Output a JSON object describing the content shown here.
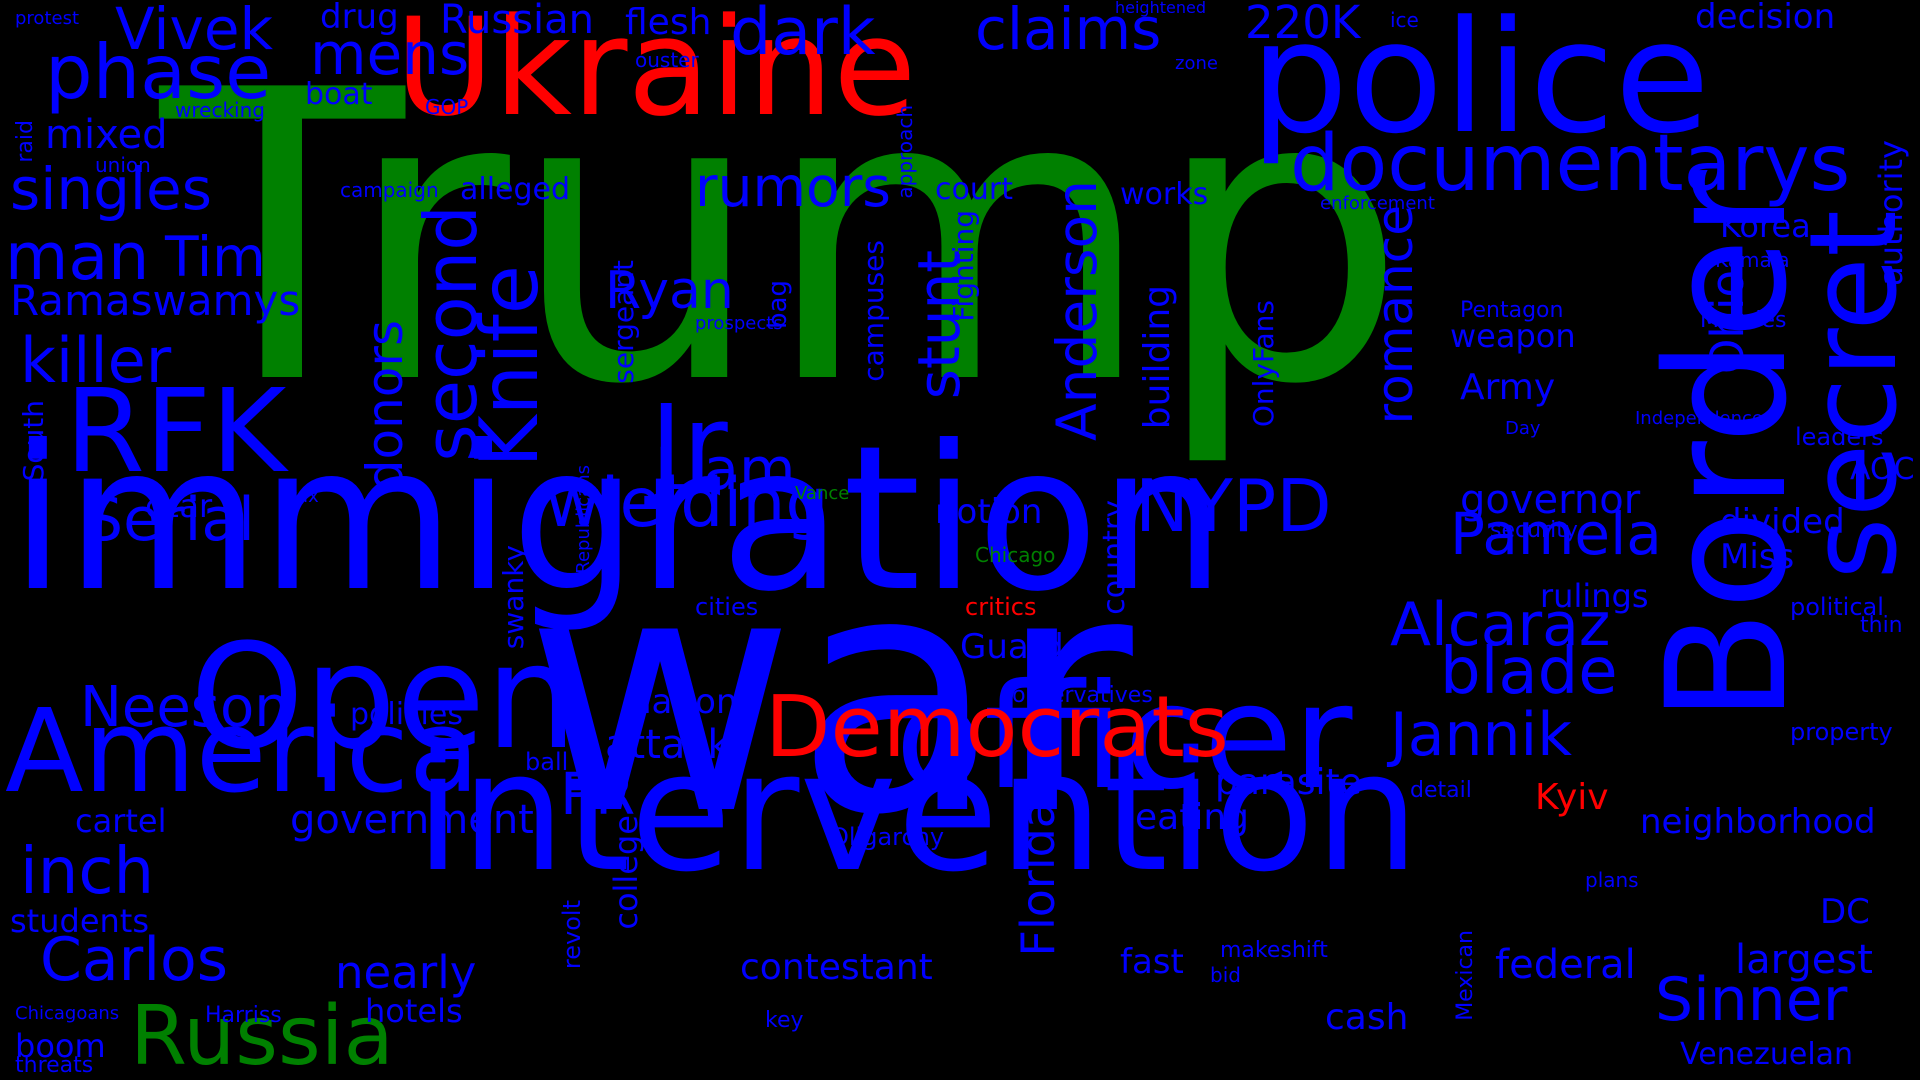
{
  "colors": {
    "background": "#000000",
    "blue": "#0000ff",
    "red": "#ff0000",
    "green": "#008000"
  },
  "words": [
    {
      "text": "Trump",
      "color": "green"
    },
    {
      "text": "war",
      "color": "blue"
    },
    {
      "text": "immigration",
      "color": "blue"
    },
    {
      "text": "intervention",
      "color": "blue"
    },
    {
      "text": "Ukraine",
      "color": "red"
    },
    {
      "text": "police",
      "color": "blue"
    },
    {
      "text": "officer",
      "color": "blue"
    },
    {
      "text": "Open",
      "color": "blue"
    },
    {
      "text": "Border",
      "color": "blue"
    },
    {
      "text": "secret",
      "color": "blue"
    },
    {
      "text": "America",
      "color": "blue"
    },
    {
      "text": "RFK",
      "color": "blue"
    },
    {
      "text": "Democrats",
      "color": "red"
    },
    {
      "text": "documentarys",
      "color": "blue"
    },
    {
      "text": "Russia",
      "color": "green"
    },
    {
      "text": "Jr",
      "color": "blue"
    },
    {
      "text": "Knife",
      "color": "blue"
    },
    {
      "text": "second",
      "color": "blue"
    },
    {
      "text": "Serial",
      "color": "blue"
    },
    {
      "text": "wielding",
      "color": "blue"
    },
    {
      "text": "NYPD",
      "color": "blue"
    },
    {
      "text": "Alcaraz",
      "color": "blue"
    },
    {
      "text": "Carlos",
      "color": "blue"
    },
    {
      "text": "Sinner",
      "color": "blue"
    },
    {
      "text": "Jannik",
      "color": "blue"
    },
    {
      "text": "blade",
      "color": "blue"
    },
    {
      "text": "Neeson",
      "color": "blue"
    },
    {
      "text": "Pamela",
      "color": "blue"
    },
    {
      "text": "Anderson",
      "color": "blue"
    },
    {
      "text": "phase",
      "color": "blue"
    },
    {
      "text": "dark",
      "color": "blue"
    },
    {
      "text": "claims",
      "color": "blue"
    },
    {
      "text": "mens",
      "color": "blue"
    },
    {
      "text": "Vivek",
      "color": "blue"
    },
    {
      "text": "singles",
      "color": "blue"
    },
    {
      "text": "man",
      "color": "blue"
    },
    {
      "text": "killer",
      "color": "blue"
    },
    {
      "text": "Tim",
      "color": "blue"
    },
    {
      "text": "rumors",
      "color": "blue"
    },
    {
      "text": "Ryan",
      "color": "blue"
    },
    {
      "text": "Liam",
      "color": "blue"
    },
    {
      "text": "stunt",
      "color": "blue"
    },
    {
      "text": "donors",
      "color": "blue"
    },
    {
      "text": "romance",
      "color": "blue"
    },
    {
      "text": "inch",
      "color": "blue"
    },
    {
      "text": "PR",
      "color": "blue"
    },
    {
      "text": "220K",
      "color": "blue"
    },
    {
      "text": "Ohio",
      "color": "blue"
    },
    {
      "text": "Ramaswamys",
      "color": "blue"
    },
    {
      "text": "mixed",
      "color": "blue"
    },
    {
      "text": "government",
      "color": "blue"
    },
    {
      "text": "nearly",
      "color": "blue"
    },
    {
      "text": "federal",
      "color": "blue"
    },
    {
      "text": "neighborhood",
      "color": "blue"
    },
    {
      "text": "largest",
      "color": "blue"
    },
    {
      "text": "Florida",
      "color": "blue"
    },
    {
      "text": "contestant",
      "color": "blue"
    },
    {
      "text": "attack",
      "color": "blue"
    },
    {
      "text": "governor",
      "color": "blue"
    },
    {
      "text": "nation",
      "color": "blue"
    },
    {
      "text": "authority",
      "color": "blue"
    },
    {
      "text": "decision",
      "color": "blue"
    },
    {
      "text": "Russian",
      "color": "blue"
    },
    {
      "text": "drug",
      "color": "blue"
    },
    {
      "text": "flesh",
      "color": "blue"
    },
    {
      "text": "building",
      "color": "blue"
    },
    {
      "text": "Korea",
      "color": "blue"
    },
    {
      "text": "Army",
      "color": "blue"
    },
    {
      "text": "weapon",
      "color": "blue"
    },
    {
      "text": "eating",
      "color": "blue"
    },
    {
      "text": "parasite",
      "color": "blue"
    },
    {
      "text": "hotels",
      "color": "blue"
    },
    {
      "text": "cash",
      "color": "blue"
    },
    {
      "text": "fast",
      "color": "blue"
    },
    {
      "text": "Guard",
      "color": "blue"
    },
    {
      "text": "notion",
      "color": "blue"
    },
    {
      "text": "rulings",
      "color": "blue"
    },
    {
      "text": "divided",
      "color": "blue"
    },
    {
      "text": "Miss",
      "color": "blue"
    },
    {
      "text": "DC",
      "color": "blue"
    },
    {
      "text": "AOC",
      "color": "blue"
    },
    {
      "text": "boom",
      "color": "blue"
    },
    {
      "text": "students",
      "color": "blue"
    },
    {
      "text": "cartel",
      "color": "blue"
    },
    {
      "text": "policies",
      "color": "blue"
    },
    {
      "text": "college",
      "color": "blue"
    },
    {
      "text": "czar",
      "color": "blue"
    },
    {
      "text": "alleged",
      "color": "blue"
    },
    {
      "text": "court",
      "color": "blue"
    },
    {
      "text": "works",
      "color": "blue"
    },
    {
      "text": "boat",
      "color": "blue"
    },
    {
      "text": "country",
      "color": "blue"
    },
    {
      "text": "OnlyFans",
      "color": "blue"
    },
    {
      "text": "Fighting",
      "color": "blue"
    },
    {
      "text": "campuses",
      "color": "blue"
    },
    {
      "text": "sergeant",
      "color": "blue"
    },
    {
      "text": "swanky",
      "color": "blue"
    },
    {
      "text": "South",
      "color": "blue"
    },
    {
      "text": "Kyiv",
      "color": "red"
    },
    {
      "text": "critics",
      "color": "red"
    },
    {
      "text": "Chicago",
      "color": "green"
    },
    {
      "text": "Vance",
      "color": "green"
    },
    {
      "text": "conservatives",
      "color": "blue"
    },
    {
      "text": "cities",
      "color": "blue"
    },
    {
      "text": "Oligarchy",
      "color": "blue"
    },
    {
      "text": "makeshift",
      "color": "blue"
    },
    {
      "text": "bid",
      "color": "blue"
    },
    {
      "text": "key",
      "color": "blue"
    },
    {
      "text": "Harriss",
      "color": "blue"
    },
    {
      "text": "Chicagoans",
      "color": "blue"
    },
    {
      "text": "threats",
      "color": "blue"
    },
    {
      "text": "revolt",
      "color": "blue"
    },
    {
      "text": "ball",
      "color": "blue"
    },
    {
      "text": "detail",
      "color": "blue"
    },
    {
      "text": "plans",
      "color": "blue"
    },
    {
      "text": "Mexican",
      "color": "blue"
    },
    {
      "text": "Venezuelan",
      "color": "blue"
    },
    {
      "text": "property",
      "color": "blue"
    },
    {
      "text": "thin",
      "color": "blue"
    },
    {
      "text": "political",
      "color": "blue"
    },
    {
      "text": "security",
      "color": "blue"
    },
    {
      "text": "leaders",
      "color": "blue"
    },
    {
      "text": "Independence",
      "color": "blue"
    },
    {
      "text": "Day",
      "color": "blue"
    },
    {
      "text": "Massies",
      "color": "blue"
    },
    {
      "text": "Kamala",
      "color": "blue"
    },
    {
      "text": "Pentagon",
      "color": "blue"
    },
    {
      "text": "enforcement",
      "color": "blue"
    },
    {
      "text": "campaign",
      "color": "blue"
    },
    {
      "text": "union",
      "color": "blue"
    },
    {
      "text": "wrecking",
      "color": "blue"
    },
    {
      "text": "GOP",
      "color": "blue"
    },
    {
      "text": "ouster",
      "color": "blue"
    },
    {
      "text": "approach",
      "color": "blue"
    },
    {
      "text": "heightened",
      "color": "blue"
    },
    {
      "text": "zone",
      "color": "blue"
    },
    {
      "text": "ice",
      "color": "blue"
    },
    {
      "text": "protest",
      "color": "blue"
    },
    {
      "text": "raid",
      "color": "blue"
    },
    {
      "text": "tax",
      "color": "blue"
    },
    {
      "text": "Republicans",
      "color": "blue"
    },
    {
      "text": "bag",
      "color": "blue"
    },
    {
      "text": "prospects",
      "color": "blue"
    }
  ]
}
